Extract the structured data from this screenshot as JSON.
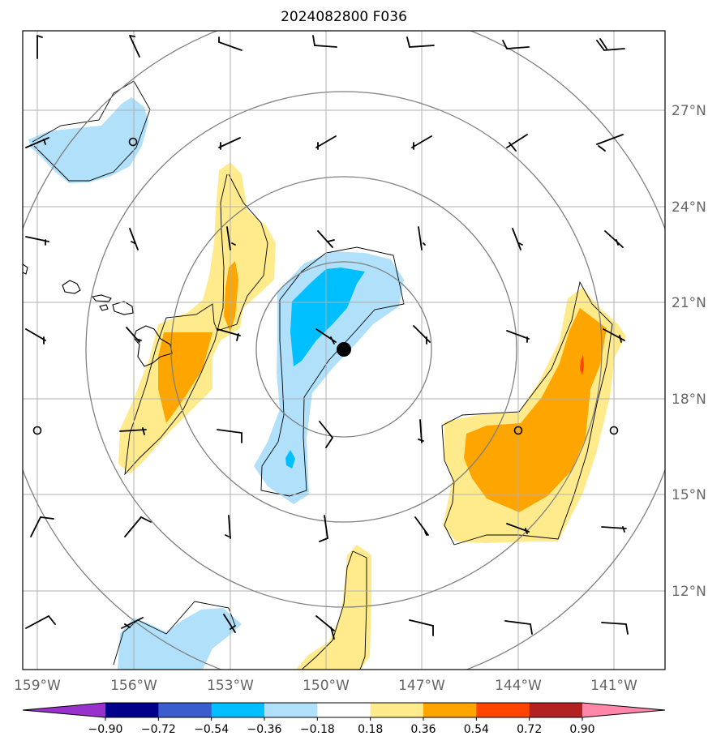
{
  "title": "2024082800 F036",
  "lon_ticks": [
    "159°W",
    "156°W",
    "153°W",
    "150°W",
    "147°W",
    "144°W",
    "141°W"
  ],
  "lat_ticks": [
    "27°N",
    "24°N",
    "21°N",
    "18°N",
    "15°N",
    "12°N"
  ],
  "colorbar": {
    "ticks": [
      "−0.90",
      "−0.72",
      "−0.54",
      "−0.36",
      "−0.18",
      "0.18",
      "0.36",
      "0.54",
      "0.72",
      "0.90"
    ],
    "colors": [
      "#9932cc",
      "#00008b",
      "#3a5ccc",
      "#00bfff",
      "#b0e0fa",
      "#ffffff",
      "#ffeb8c",
      "#ffa500",
      "#ff4500",
      "#b22222",
      "#ff88aa"
    ]
  },
  "fill_colors": {
    "light_blue": "#b0e0fa",
    "mid_blue": "#00bfff",
    "light_yellow": "#ffeb8c",
    "orange": "#ffa500",
    "red_orange": "#ff4500"
  },
  "storm_center_marker": "black-dot",
  "range_ring_color": "#808080",
  "gridline_color": "#b0b0b0"
}
